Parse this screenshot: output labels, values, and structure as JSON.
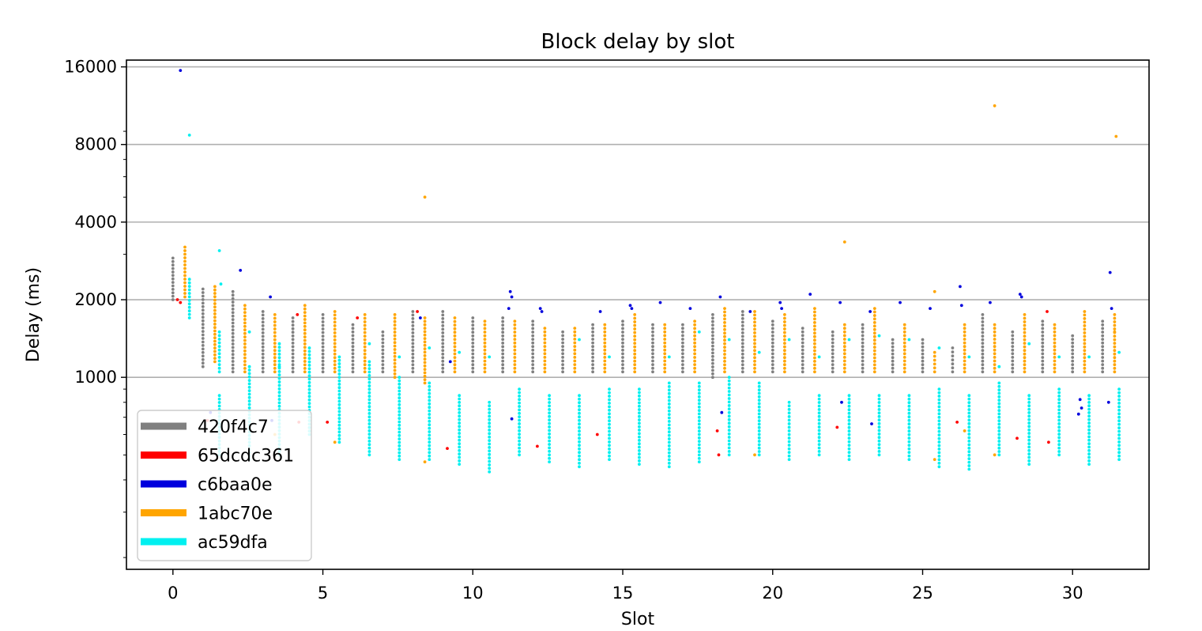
{
  "chart_data": {
    "type": "scatter",
    "title": "Block delay by slot",
    "xlabel": "Slot",
    "ylabel": "Delay (ms)",
    "x_scale": "linear",
    "y_scale": "log",
    "xlim": [
      -1.55,
      32.55
    ],
    "ylim": [
      180,
      17000
    ],
    "x_ticks": [
      0,
      5,
      10,
      15,
      20,
      25,
      30
    ],
    "x_tick_labels": [
      "0",
      "5",
      "10",
      "15",
      "20",
      "25",
      "30"
    ],
    "y_ticks": [
      1000,
      2000,
      4000,
      8000,
      16000
    ],
    "y_tick_labels": [
      "1000",
      "2000",
      "4000",
      "8000",
      "16000"
    ],
    "grid": "horizontal",
    "legend_position": "lower-left",
    "series": [
      {
        "name": "420f4c7",
        "color": "#808080",
        "offset": 0.0,
        "per_slot": [
          [
            2000,
            2900
          ],
          [
            1100,
            2200
          ],
          [
            1050,
            2150
          ],
          [
            1050,
            1800
          ],
          [
            1050,
            1700
          ],
          [
            1050,
            1750
          ],
          [
            1050,
            1600
          ],
          [
            1050,
            1500
          ],
          [
            1050,
            1800
          ],
          [
            1050,
            1800
          ],
          [
            1050,
            1700
          ],
          [
            1050,
            1700
          ],
          [
            1050,
            1650
          ],
          [
            1050,
            1500
          ],
          [
            1050,
            1600
          ],
          [
            1050,
            1650
          ],
          [
            1050,
            1600
          ],
          [
            1050,
            1600
          ],
          [
            1000,
            1750
          ],
          [
            1050,
            1800
          ],
          [
            1050,
            1650
          ],
          [
            1050,
            1550
          ],
          [
            1050,
            1500
          ],
          [
            1050,
            1600
          ],
          [
            1050,
            1400
          ],
          [
            1050,
            1400
          ],
          [
            1050,
            1300
          ],
          [
            1050,
            1750
          ],
          [
            1050,
            1500
          ],
          [
            1050,
            1650
          ],
          [
            1050,
            1450
          ],
          [
            1050,
            1650
          ]
        ]
      },
      {
        "name": "65dcdc361",
        "color": "#ff0000",
        "offset": 0.15,
        "points": [
          [
            0.15,
            2000
          ],
          [
            0.25,
            1950
          ],
          [
            1.15,
            680
          ],
          [
            4.15,
            1750
          ],
          [
            4.2,
            670
          ],
          [
            5.15,
            670
          ],
          [
            6.15,
            1700
          ],
          [
            8.15,
            1800
          ],
          [
            9.15,
            530
          ],
          [
            12.15,
            540
          ],
          [
            14.15,
            600
          ],
          [
            18.15,
            620
          ],
          [
            18.2,
            500
          ],
          [
            22.15,
            640
          ],
          [
            26.15,
            670
          ],
          [
            28.15,
            580
          ],
          [
            29.15,
            1800
          ],
          [
            29.2,
            560
          ]
        ]
      },
      {
        "name": "c6baa0e",
        "color": "#0000dd",
        "offset": 0.25,
        "points": [
          [
            0.25,
            15500
          ],
          [
            1.25,
            730
          ],
          [
            2.25,
            2600
          ],
          [
            3.25,
            2050
          ],
          [
            3.3,
            680
          ],
          [
            8.25,
            1700
          ],
          [
            9.25,
            1150
          ],
          [
            11.25,
            2150
          ],
          [
            11.3,
            2050
          ],
          [
            11.2,
            1850
          ],
          [
            11.3,
            690
          ],
          [
            12.25,
            1850
          ],
          [
            12.3,
            1800
          ],
          [
            14.25,
            1800
          ],
          [
            15.25,
            1900
          ],
          [
            15.3,
            1850
          ],
          [
            16.25,
            1950
          ],
          [
            17.25,
            1850
          ],
          [
            18.25,
            2050
          ],
          [
            18.3,
            730
          ],
          [
            19.25,
            1800
          ],
          [
            20.25,
            1950
          ],
          [
            20.3,
            1850
          ],
          [
            21.25,
            2100
          ],
          [
            22.25,
            1950
          ],
          [
            22.3,
            800
          ],
          [
            23.25,
            1800
          ],
          [
            23.3,
            660
          ],
          [
            24.25,
            1950
          ],
          [
            25.25,
            1850
          ],
          [
            26.25,
            2250
          ],
          [
            26.3,
            1900
          ],
          [
            27.25,
            1950
          ],
          [
            28.25,
            2100
          ],
          [
            28.3,
            2050
          ],
          [
            30.25,
            820
          ],
          [
            30.3,
            760
          ],
          [
            30.2,
            720
          ],
          [
            31.25,
            2550
          ],
          [
            31.3,
            1850
          ],
          [
            31.2,
            800
          ]
        ]
      },
      {
        "name": "1abc70e",
        "color": "#ffa500",
        "offset": 0.4,
        "per_slot": [
          [
            2050,
            3200
          ],
          [
            1150,
            2250
          ],
          [
            1050,
            1900
          ],
          [
            1050,
            1750
          ],
          [
            1050,
            1900
          ],
          [
            1050,
            1800
          ],
          [
            1050,
            1750
          ],
          [
            1000,
            1750
          ],
          [
            950,
            1700
          ],
          [
            1050,
            1700
          ],
          [
            1050,
            1650
          ],
          [
            1050,
            1650
          ],
          [
            1050,
            1550
          ],
          [
            1050,
            1550
          ],
          [
            1050,
            1600
          ],
          [
            1050,
            1750
          ],
          [
            1050,
            1600
          ],
          [
            1050,
            1650
          ],
          [
            1050,
            1850
          ],
          [
            1050,
            1800
          ],
          [
            1050,
            1750
          ],
          [
            1050,
            1850
          ],
          [
            1050,
            1600
          ],
          [
            1050,
            1850
          ],
          [
            1050,
            1600
          ],
          [
            1050,
            1250
          ],
          [
            1050,
            1600
          ],
          [
            1050,
            1600
          ],
          [
            1050,
            1750
          ],
          [
            1050,
            1600
          ],
          [
            1050,
            1800
          ],
          [
            1050,
            1750
          ]
        ],
        "extra_points": [
          [
            8.4,
            5000
          ],
          [
            22.4,
            3350
          ],
          [
            27.4,
            11300
          ],
          [
            31.45,
            8600
          ],
          [
            25.4,
            2150
          ],
          [
            3.4,
            600
          ],
          [
            8.4,
            470
          ],
          [
            19.4,
            500
          ],
          [
            25.4,
            480
          ],
          [
            27.4,
            500
          ],
          [
            5.4,
            560
          ],
          [
            26.4,
            620
          ],
          [
            31.4,
            1500
          ]
        ]
      },
      {
        "name": "ac59dfa",
        "color": "#00f0f0",
        "offset": 0.55,
        "clusters": [
          [
            0.55,
            1700,
            2400
          ],
          [
            1.55,
            1050,
            1500
          ],
          [
            1.55,
            500,
            850
          ],
          [
            2.55,
            480,
            1100
          ],
          [
            3.55,
            500,
            1350
          ],
          [
            4.55,
            600,
            1300
          ],
          [
            5.55,
            560,
            1200
          ],
          [
            6.55,
            500,
            1150
          ],
          [
            7.55,
            480,
            1000
          ],
          [
            8.55,
            480,
            950
          ],
          [
            9.55,
            460,
            850
          ],
          [
            10.55,
            430,
            800
          ],
          [
            11.55,
            500,
            900
          ],
          [
            12.55,
            470,
            850
          ],
          [
            13.55,
            450,
            850
          ],
          [
            14.55,
            480,
            900
          ],
          [
            15.55,
            460,
            900
          ],
          [
            16.55,
            450,
            950
          ],
          [
            17.55,
            470,
            950
          ],
          [
            18.55,
            500,
            1000
          ],
          [
            19.55,
            500,
            950
          ],
          [
            20.55,
            480,
            800
          ],
          [
            21.55,
            500,
            850
          ],
          [
            22.55,
            480,
            850
          ],
          [
            23.55,
            500,
            850
          ],
          [
            24.55,
            480,
            850
          ],
          [
            25.55,
            450,
            900
          ],
          [
            26.55,
            440,
            850
          ],
          [
            27.55,
            500,
            950
          ],
          [
            28.55,
            460,
            850
          ],
          [
            29.55,
            500,
            900
          ],
          [
            30.55,
            460,
            850
          ],
          [
            31.55,
            480,
            900
          ]
        ],
        "extra_points": [
          [
            0.55,
            8700
          ],
          [
            1.55,
            3100
          ],
          [
            1.6,
            2300
          ],
          [
            2.55,
            1500
          ],
          [
            3.55,
            1100
          ],
          [
            6.55,
            1350
          ],
          [
            7.55,
            1200
          ],
          [
            8.55,
            1300
          ],
          [
            9.55,
            1250
          ],
          [
            10.55,
            1200
          ],
          [
            13.55,
            1400
          ],
          [
            14.55,
            1200
          ],
          [
            16.55,
            1200
          ],
          [
            17.55,
            1500
          ],
          [
            18.55,
            1400
          ],
          [
            19.55,
            1250
          ],
          [
            20.55,
            1400
          ],
          [
            21.55,
            1200
          ],
          [
            22.55,
            1400
          ],
          [
            23.55,
            1450
          ],
          [
            24.55,
            1400
          ],
          [
            25.55,
            1300
          ],
          [
            26.55,
            1200
          ],
          [
            27.55,
            1100
          ],
          [
            28.55,
            1350
          ],
          [
            29.55,
            1200
          ],
          [
            30.55,
            1200
          ],
          [
            31.55,
            1250
          ]
        ]
      }
    ]
  }
}
